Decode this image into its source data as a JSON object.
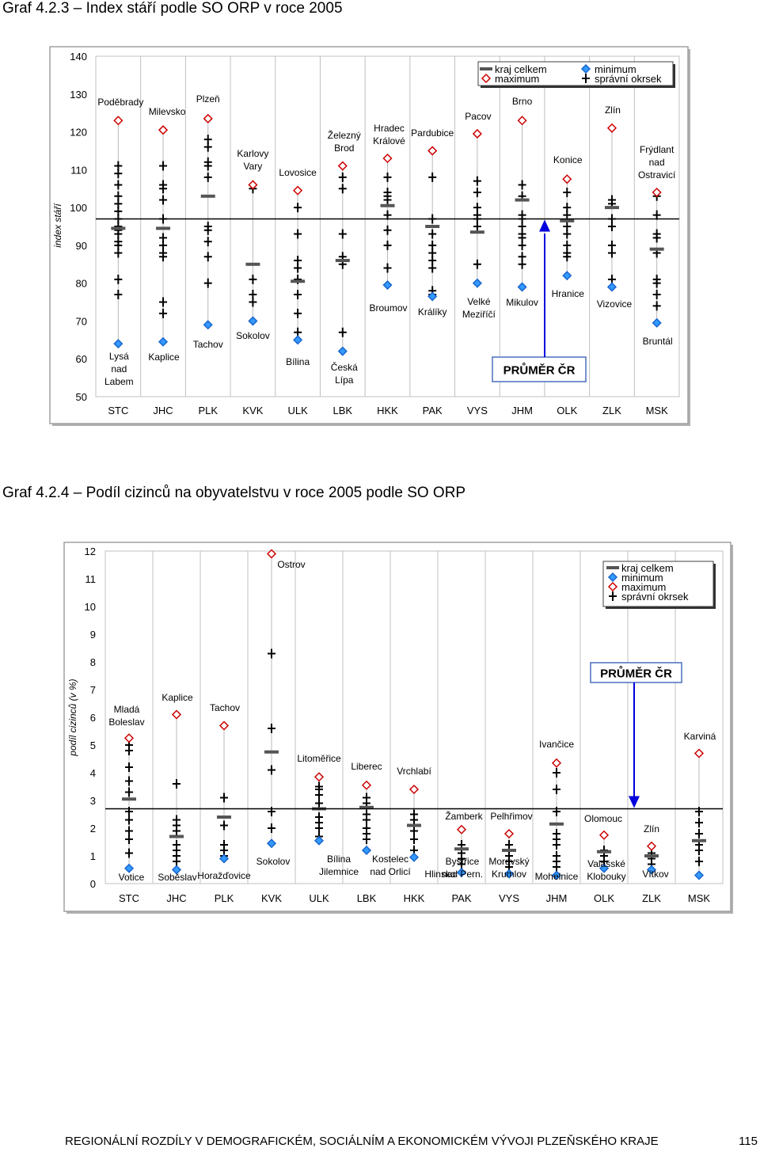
{
  "page": {
    "footer_title": "REGIONÁLNÍ ROZDÍLY V DEMOGRAFICKÉM, SOCIÁLNÍM A EKONOMICKÉM VÝVOJI PLZEŇSKÉHO KRAJE",
    "page_number": "115"
  },
  "chart_data": [
    {
      "type": "scatter",
      "title_number": "Graf 4.2.3",
      "title_text": "– Index stáří podle SO ORP v roce 2005",
      "ylabel": "index stáří",
      "xlabel": "",
      "ylim": [
        50,
        140
      ],
      "yticks": [
        "50",
        "60",
        "70",
        "80",
        "90",
        "100",
        "110",
        "120",
        "130",
        "140"
      ],
      "categories": [
        "STC",
        "JHC",
        "PLK",
        "KVK",
        "ULK",
        "LBK",
        "HKK",
        "PAK",
        "VYS",
        "JHM",
        "OLK",
        "ZLK",
        "MSK"
      ],
      "reference": {
        "label": "PRŮMĚR ČR",
        "value": 97
      },
      "legend": [
        {
          "key": "kraj",
          "label": "kraj celkem"
        },
        {
          "key": "min",
          "label": "minimum"
        },
        {
          "key": "max",
          "label": "maximum"
        },
        {
          "key": "orp",
          "label": "správní okrsek"
        }
      ],
      "colors": {
        "kraj": "#555555",
        "min": "#3399ff",
        "max": "#cc0000",
        "orp": "#000000",
        "reference": "#0000dd",
        "bg": "#ffffff",
        "frame": "#c0c0c0"
      },
      "series": [
        {
          "name": "kraj celkem",
          "values": [
            94.5,
            94.5,
            103,
            85,
            80.5,
            86,
            100.5,
            95,
            93.5,
            102,
            96.5,
            100,
            89
          ]
        },
        {
          "name": "minimum",
          "values": [
            64,
            64.5,
            69,
            70,
            65,
            62,
            79.5,
            76.5,
            80,
            79,
            82,
            79,
            69.5
          ]
        },
        {
          "name": "maximum",
          "values": [
            123,
            120.5,
            123.5,
            106,
            104.5,
            111,
            113,
            115,
            119.5,
            123,
            107.5,
            121,
            104
          ]
        },
        {
          "name": "správní okrsek",
          "values": [
            [
              111,
              109,
              106,
              103,
              101,
              99,
              97,
              95,
              94,
              93,
              91,
              90,
              88,
              81,
              77
            ],
            [
              111,
              106,
              105,
              102,
              97,
              92,
              90,
              88,
              87,
              75,
              72
            ],
            [
              118,
              116,
              112,
              111,
              108,
              95,
              94,
              91,
              87,
              80
            ],
            [
              105,
              81,
              77,
              75
            ],
            [
              100,
              93,
              86,
              84,
              81,
              77,
              72,
              67
            ],
            [
              108,
              105,
              93,
              87,
              85,
              67
            ],
            [
              108,
              104,
              103,
              102,
              98,
              94,
              90,
              84
            ],
            [
              108,
              97,
              93,
              90,
              88,
              86,
              84,
              78,
              77
            ],
            [
              107,
              104,
              100,
              98,
              97,
              95,
              85
            ],
            [
              106,
              103,
              98,
              97,
              95,
              93,
              92,
              90,
              87,
              85
            ],
            [
              104,
              100,
              98,
              95,
              93,
              90,
              88,
              87
            ],
            [
              102,
              101,
              97,
              95,
              90,
              88,
              81
            ],
            [
              103,
              98,
              93,
              92,
              88,
              81,
              80,
              77,
              74
            ]
          ]
        }
      ],
      "annotations": {
        "max": [
          [
            "Poděbrady"
          ],
          [
            "Milevsko"
          ],
          [
            "Plzeň"
          ],
          [
            "Karlovy",
            "Vary"
          ],
          [
            "Lovosice"
          ],
          [
            "Železný",
            "Brod"
          ],
          [
            "Hradec",
            "Králové"
          ],
          [
            "Pardubice"
          ],
          [
            "Pacov"
          ],
          [
            "Brno"
          ],
          [
            "Konice"
          ],
          [
            "Zlín"
          ],
          [
            "Frýdlant",
            "nad",
            "Ostravicí"
          ]
        ],
        "min": [
          [
            "Lysá",
            "nad",
            "Labem"
          ],
          [
            "Kaplice"
          ],
          [
            "Tachov"
          ],
          [
            "Sokolov"
          ],
          [
            "Bílina"
          ],
          [
            "Česká",
            "Lípa"
          ],
          [
            "Broumov"
          ],
          [
            "Králíky"
          ],
          [
            "Velké",
            "Meziříčí"
          ],
          [
            "Mikulov"
          ],
          [
            "Hranice"
          ],
          [
            "Vizovice"
          ],
          [
            "Bruntál"
          ]
        ]
      }
    },
    {
      "type": "scatter",
      "title_number": "Graf 4.2.4",
      "title_text": "– Podíl cizinců na obyvatelstvu v roce 2005 podle SO ORP",
      "ylabel": "podíl cizinců (v %)",
      "xlabel": "",
      "ylim": [
        0,
        12
      ],
      "yticks": [
        "0",
        "1",
        "2",
        "3",
        "4",
        "5",
        "6",
        "7",
        "8",
        "9",
        "10",
        "11",
        "12"
      ],
      "categories": [
        "STC",
        "JHC",
        "PLK",
        "KVK",
        "ULK",
        "LBK",
        "HKK",
        "PAK",
        "VYS",
        "JHM",
        "OLK",
        "ZLK",
        "MSK"
      ],
      "reference": {
        "label": "PRŮMĚR ČR",
        "value": 2.7
      },
      "legend": [
        {
          "key": "kraj",
          "label": "kraj celkem"
        },
        {
          "key": "min",
          "label": "minimum"
        },
        {
          "key": "max",
          "label": "maximum"
        },
        {
          "key": "orp",
          "label": "správní okrsek"
        }
      ],
      "colors": {
        "kraj": "#555555",
        "min": "#3399ff",
        "max": "#cc0000",
        "orp": "#000000",
        "reference": "#0000dd",
        "bg": "#ffffff",
        "frame": "#c0c0c0"
      },
      "series": [
        {
          "name": "kraj celkem",
          "values": [
            3.05,
            1.7,
            2.4,
            4.75,
            2.7,
            2.75,
            2.1,
            1.25,
            1.2,
            2.15,
            1.15,
            1.0,
            1.55
          ]
        },
        {
          "name": "minimum",
          "values": [
            0.55,
            0.5,
            0.9,
            1.45,
            1.55,
            1.2,
            0.95,
            0.4,
            0.35,
            0.3,
            0.55,
            0.5,
            0.3
          ]
        },
        {
          "name": "maximum",
          "values": [
            5.25,
            6.1,
            5.7,
            11.9,
            3.85,
            3.55,
            3.4,
            1.95,
            1.8,
            4.35,
            1.75,
            1.35,
            4.7
          ]
        },
        {
          "name": "správní okrsek",
          "values": [
            [
              5.0,
              4.8,
              4.2,
              3.7,
              3.3,
              2.6,
              2.3,
              1.9,
              1.6,
              1.1
            ],
            [
              3.6,
              2.3,
              2.1,
              1.9,
              1.4,
              1.2,
              1.0,
              0.8
            ],
            [
              3.1,
              2.1,
              1.4,
              1.2,
              1.0
            ],
            [
              8.3,
              5.6,
              4.1,
              2.6,
              2.0
            ],
            [
              3.5,
              3.4,
              3.2,
              2.9,
              2.4,
              2.2,
              2.0,
              1.7
            ],
            [
              3.1,
              2.9,
              2.5,
              2.3,
              2.0,
              1.8,
              1.6
            ],
            [
              2.5,
              2.3,
              1.9,
              1.6,
              1.2
            ],
            [
              1.4,
              1.1,
              0.9,
              0.7
            ],
            [
              1.4,
              1.2,
              1.0,
              0.8,
              0.6
            ],
            [
              4.0,
              3.4,
              2.6,
              1.8,
              1.6,
              1.4,
              1.0,
              0.8,
              0.6
            ],
            [
              1.2,
              1.0,
              0.8
            ],
            [
              1.1,
              0.9,
              0.7
            ],
            [
              2.6,
              2.2,
              1.8,
              1.4,
              1.2,
              0.8
            ]
          ]
        }
      ],
      "annotations": {
        "max": [
          [
            "Mladá",
            "Boleslav"
          ],
          [
            "Kaplice"
          ],
          [
            "Tachov"
          ],
          [
            "Ostrov"
          ],
          [
            "Litoměřice"
          ],
          [
            "Liberec"
          ],
          [
            "Vrchlabí"
          ],
          [
            "Žamberk"
          ],
          [
            "Pelhřimov"
          ],
          [
            "Ivančice"
          ],
          [
            "Olomouc"
          ],
          [
            "Zlín"
          ],
          [
            "Karviná"
          ]
        ],
        "min": [
          [
            "Votice"
          ],
          [
            "Soběslav"
          ],
          [
            "Horažďovice"
          ],
          [
            "Sokolov"
          ],
          [
            "Bílina",
            "Jilemnice"
          ],
          [
            "Kostelec",
            "nad Orlicí"
          ],
          [
            "Hlinsko"
          ],
          [
            "Bystřice",
            "nad Pern."
          ],
          [
            "Moravský",
            "Krumlov"
          ],
          [
            "Mohelnice"
          ],
          [
            "Valašské",
            "Klobouky"
          ],
          [
            "Vítkov"
          ],
          [
            ""
          ]
        ]
      }
    }
  ]
}
